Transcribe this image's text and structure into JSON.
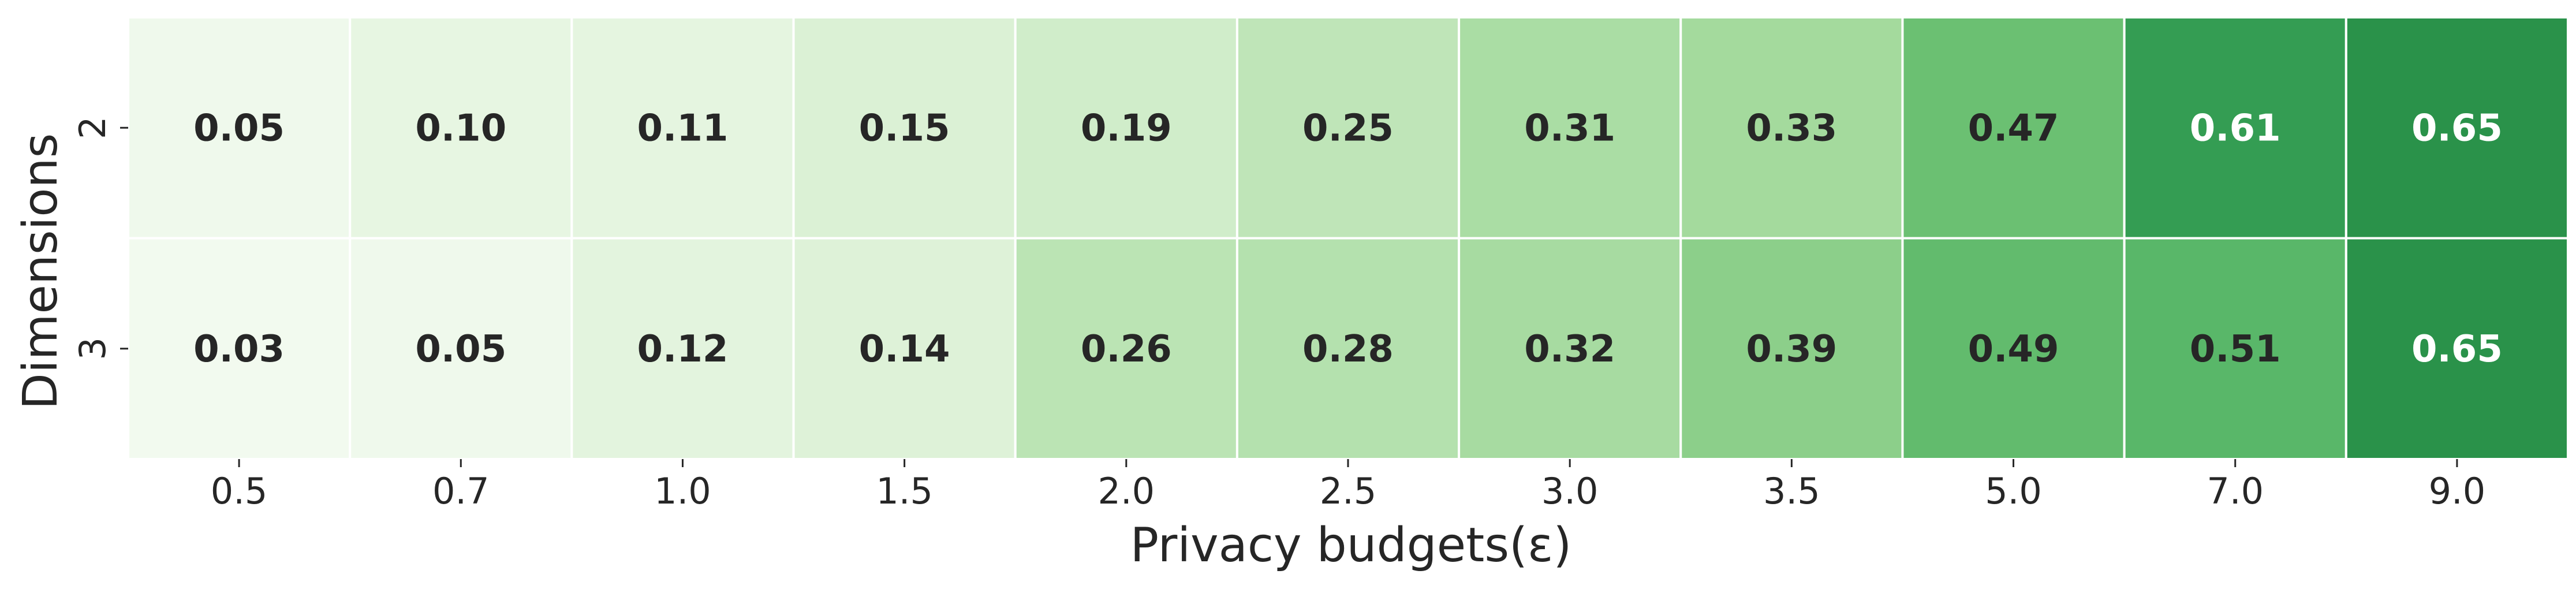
{
  "chart_data": {
    "type": "heatmap",
    "title": "",
    "xlabel": "Privacy budgets(ε)",
    "ylabel": "Dimensions",
    "x_categories": [
      "0.5",
      "0.7",
      "1.0",
      "1.5",
      "2.0",
      "2.5",
      "3.0",
      "3.5",
      "5.0",
      "7.0",
      "9.0"
    ],
    "y_categories": [
      "2",
      "3"
    ],
    "values": [
      [
        0.05,
        0.1,
        0.11,
        0.15,
        0.19,
        0.25,
        0.31,
        0.33,
        0.47,
        0.61,
        0.65
      ],
      [
        0.03,
        0.05,
        0.12,
        0.14,
        0.26,
        0.28,
        0.32,
        0.39,
        0.49,
        0.51,
        0.65
      ]
    ],
    "value_labels": [
      [
        "0.05",
        "0.10",
        "0.11",
        "0.15",
        "0.19",
        "0.25",
        "0.31",
        "0.33",
        "0.47",
        "0.61",
        "0.65"
      ],
      [
        "0.03",
        "0.05",
        "0.12",
        "0.14",
        "0.26",
        "0.28",
        "0.32",
        "0.39",
        "0.49",
        "0.51",
        "0.65"
      ]
    ],
    "colormap": "Greens",
    "color_range": [
      0,
      0.9
    ],
    "grid_line_color": "#ffffff",
    "dark_text_color": "#262626",
    "light_text_color": "#ffffff",
    "legend": "none"
  }
}
